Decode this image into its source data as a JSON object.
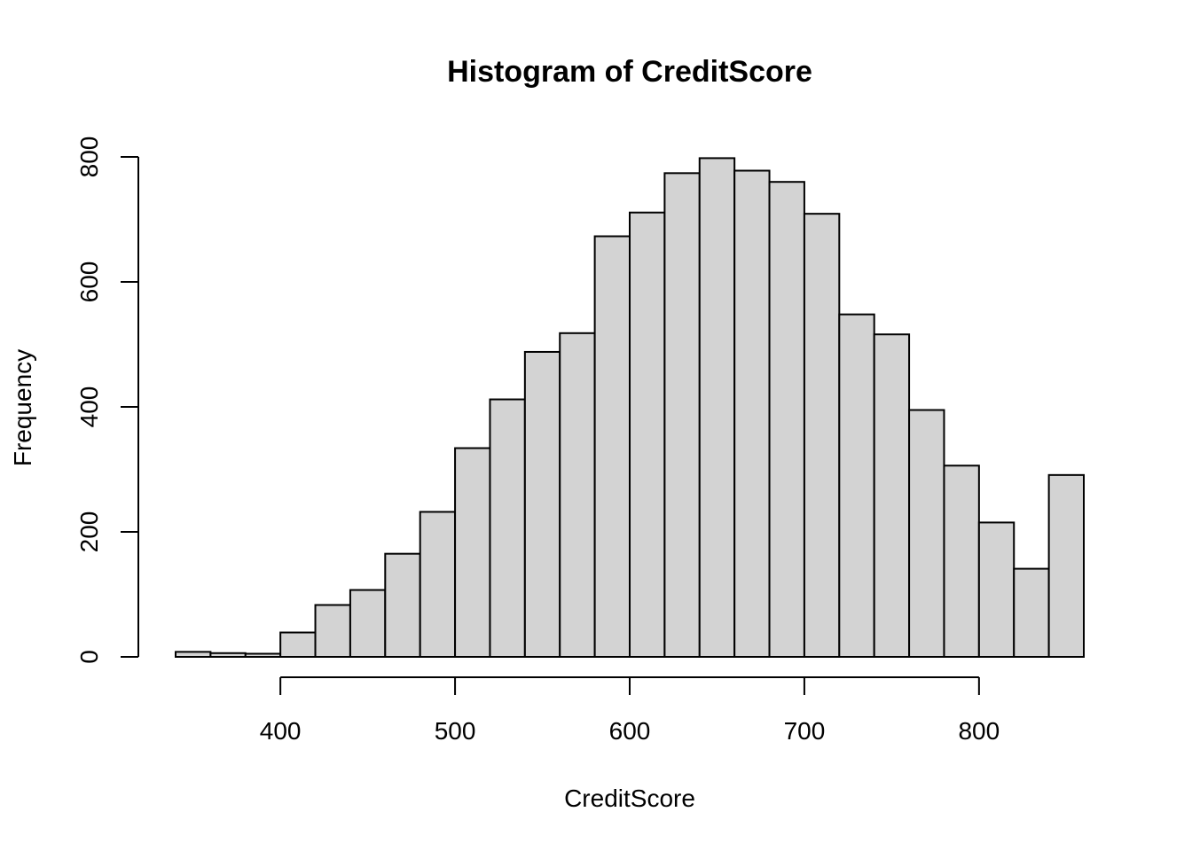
{
  "chart_data": {
    "type": "bar",
    "title": "Histogram of CreditScore",
    "xlabel": "CreditScore",
    "ylabel": "Frequency",
    "xlim": [
      340,
      860
    ],
    "ylim": [
      0,
      800
    ],
    "x_ticks": [
      400,
      500,
      600,
      700,
      800
    ],
    "y_ticks": [
      0,
      200,
      400,
      600,
      800
    ],
    "bin_width": 20,
    "bins": [
      {
        "start": 340,
        "end": 360,
        "count": 8
      },
      {
        "start": 360,
        "end": 380,
        "count": 6
      },
      {
        "start": 380,
        "end": 400,
        "count": 5
      },
      {
        "start": 400,
        "end": 420,
        "count": 39
      },
      {
        "start": 420,
        "end": 440,
        "count": 83
      },
      {
        "start": 440,
        "end": 460,
        "count": 107
      },
      {
        "start": 460,
        "end": 480,
        "count": 165
      },
      {
        "start": 480,
        "end": 500,
        "count": 232
      },
      {
        "start": 500,
        "end": 520,
        "count": 334
      },
      {
        "start": 520,
        "end": 540,
        "count": 412
      },
      {
        "start": 540,
        "end": 560,
        "count": 488
      },
      {
        "start": 560,
        "end": 580,
        "count": 518
      },
      {
        "start": 580,
        "end": 600,
        "count": 673
      },
      {
        "start": 600,
        "end": 620,
        "count": 711
      },
      {
        "start": 620,
        "end": 640,
        "count": 774
      },
      {
        "start": 640,
        "end": 660,
        "count": 798
      },
      {
        "start": 660,
        "end": 680,
        "count": 778
      },
      {
        "start": 680,
        "end": 700,
        "count": 760
      },
      {
        "start": 700,
        "end": 720,
        "count": 709
      },
      {
        "start": 720,
        "end": 740,
        "count": 548
      },
      {
        "start": 740,
        "end": 760,
        "count": 516
      },
      {
        "start": 760,
        "end": 780,
        "count": 395
      },
      {
        "start": 780,
        "end": 800,
        "count": 306
      },
      {
        "start": 800,
        "end": 820,
        "count": 215
      },
      {
        "start": 820,
        "end": 840,
        "count": 141
      },
      {
        "start": 840,
        "end": 860,
        "count": 291
      }
    ]
  }
}
